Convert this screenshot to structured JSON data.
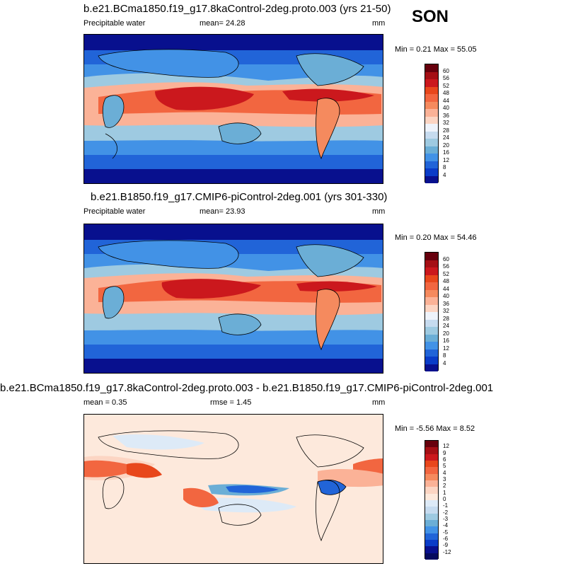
{
  "season": "SON",
  "panels": [
    {
      "title": "b.e21.BCma1850.f19_g17.8kaControl-2deg.proto.003 (yrs 21-50)",
      "left_label": "Precipitable water",
      "center_label": "mean=  24.28",
      "units": "mm",
      "minmax": "Min =  0.21 Max =  55.05",
      "levels": [
        "60",
        "56",
        "52",
        "48",
        "44",
        "40",
        "36",
        "32",
        "28",
        "24",
        "20",
        "16",
        "12",
        "8",
        "4"
      ],
      "colors": [
        "#67000d",
        "#a50f15",
        "#cb181d",
        "#e8471c",
        "#f26640",
        "#f58a5e",
        "#fbb297",
        "#fcd5c3",
        "#eef3fb",
        "#c6dbef",
        "#9ecae1",
        "#6baed6",
        "#4292e6",
        "#2164d8",
        "#0a3cc8",
        "#08108e"
      ]
    },
    {
      "title": "b.e21.B1850.f19_g17.CMIP6-piControl-2deg.001 (yrs 301-330)",
      "left_label": "Precipitable water",
      "center_label": "mean=  23.93",
      "units": "mm",
      "minmax": "Min =  0.20 Max =  54.46",
      "levels": [
        "60",
        "56",
        "52",
        "48",
        "44",
        "40",
        "36",
        "32",
        "28",
        "24",
        "20",
        "16",
        "12",
        "8",
        "4"
      ],
      "colors": [
        "#67000d",
        "#a50f15",
        "#cb181d",
        "#e8471c",
        "#f26640",
        "#f58a5e",
        "#fbb297",
        "#fcd5c3",
        "#eef3fb",
        "#c6dbef",
        "#9ecae1",
        "#6baed6",
        "#4292e6",
        "#2164d8",
        "#0a3cc8",
        "#08108e"
      ]
    },
    {
      "title": "b.e21.BCma1850.f19_g17.8kaControl-2deg.proto.003 - b.e21.B1850.f19_g17.CMIP6-piControl-2deg.001",
      "left_label": "mean =   0.35",
      "center_label": "rmse =   1.45",
      "units": "mm",
      "minmax": "Min =  -5.56 Max =   8.52",
      "levels": [
        "12",
        "9",
        "6",
        "5",
        "4",
        "3",
        "2",
        "1",
        "0",
        "-1",
        "-2",
        "-3",
        "-4",
        "-5",
        "-6",
        "-9",
        "-12"
      ],
      "colors": [
        "#67000d",
        "#a50f15",
        "#cb181d",
        "#e8471c",
        "#f26640",
        "#f58a5e",
        "#fbb297",
        "#fcd5c3",
        "#fde9dc",
        "#ddeaf7",
        "#c6dbef",
        "#9ecae1",
        "#6baed6",
        "#4292e6",
        "#2164d8",
        "#0a3cc8",
        "#08108e",
        "#050a5e"
      ]
    }
  ]
}
